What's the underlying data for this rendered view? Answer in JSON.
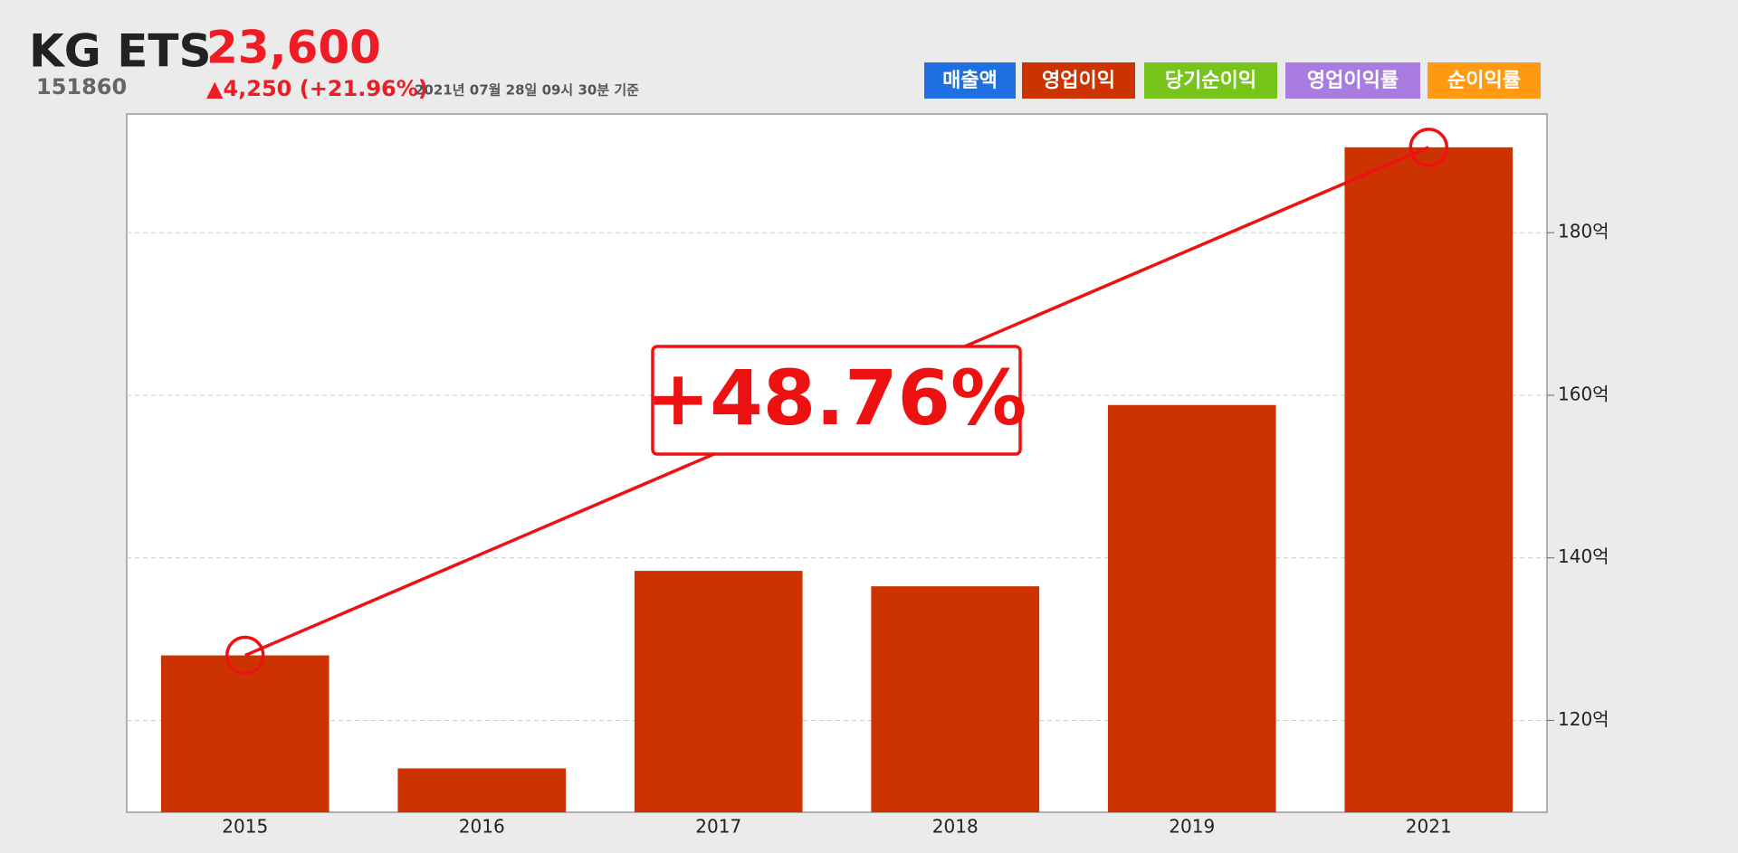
{
  "header": {
    "name": "KG ETS",
    "price": "23,600",
    "code": "151860",
    "change": "▲4,250 (+21.96%)",
    "timestamp": "2021년 07월 28일 09시 30분 기준"
  },
  "tabs": [
    {
      "label": "매출액",
      "color": "#1f6fe0"
    },
    {
      "label": "영업이익",
      "color": "#cc3300"
    },
    {
      "label": "당기순이익",
      "color": "#77c41a"
    },
    {
      "label": "영업이익률",
      "color": "#a97de0"
    },
    {
      "label": "순이익률",
      "color": "#ff9a12"
    }
  ],
  "chart_data": {
    "type": "bar",
    "categories": [
      "2015",
      "2016",
      "2017",
      "2018",
      "2019",
      "2021"
    ],
    "values": [
      128.0,
      114.1,
      138.4,
      136.5,
      158.8,
      190.5
    ],
    "color": "#cc3300",
    "ylim": [
      108.7,
      194.6
    ],
    "yticks": [
      {
        "value": 120,
        "label": "120억"
      },
      {
        "value": 140,
        "label": "140억"
      },
      {
        "value": 160,
        "label": "160억"
      },
      {
        "value": 180,
        "label": "180억"
      }
    ],
    "grid": true,
    "annotation": "+48.76%",
    "trend_color": "#ee1111"
  }
}
